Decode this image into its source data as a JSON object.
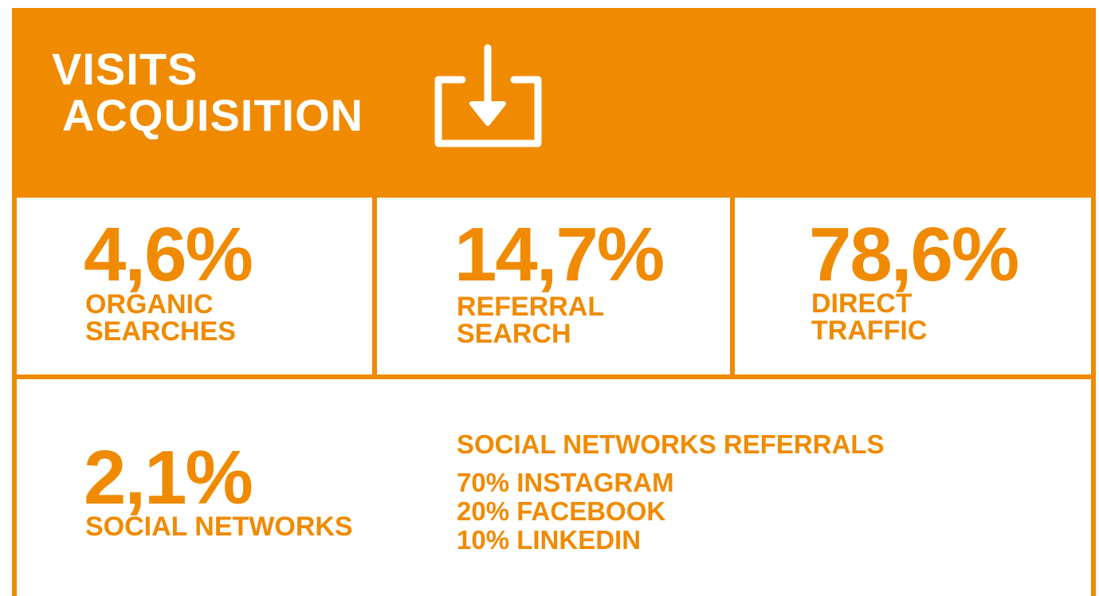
{
  "header": {
    "title": [
      "VISITS",
      "ACQUISITION"
    ]
  },
  "stats": [
    {
      "value": "4,6%",
      "label": [
        "ORGANIC",
        "SEARCHES"
      ]
    },
    {
      "value": "14,7%",
      "label": [
        "REFERRAL",
        "SEARCH"
      ]
    },
    {
      "value": "78,6%",
      "label": [
        "DIRECT",
        "TRAFFIC"
      ]
    }
  ],
  "social": {
    "value": "2,1%",
    "label": [
      "SOCIAL NETWORKS"
    ],
    "referrals": {
      "title": "SOCIAL NETWORKS REFERRALS",
      "items": [
        "70% INSTAGRAM",
        "20% FACEBOOK",
        "10% LINKEDIN"
      ]
    }
  }
}
